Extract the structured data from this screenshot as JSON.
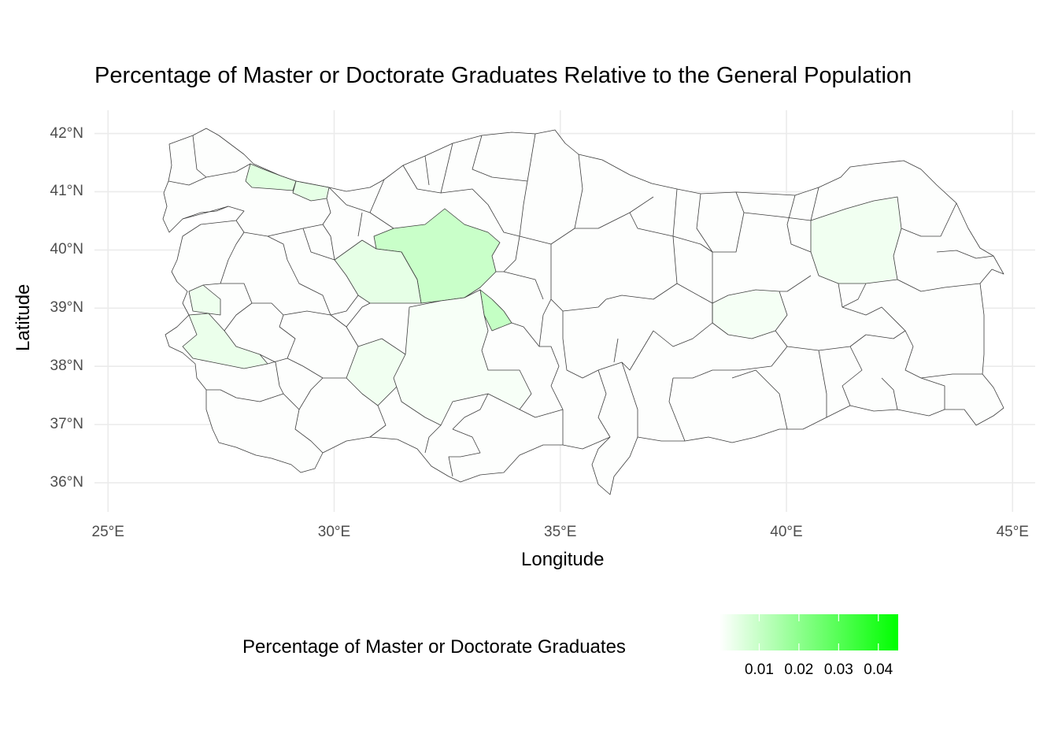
{
  "title": "Percentage of Master or Doctorate Graduates Relative to the General Population",
  "x_axis": {
    "label": "Longitude",
    "ticks": [
      {
        "value": 25,
        "label": "25°E"
      },
      {
        "value": 30,
        "label": "30°E"
      },
      {
        "value": 35,
        "label": "35°E"
      },
      {
        "value": 40,
        "label": "40°E"
      },
      {
        "value": 45,
        "label": "45°E"
      }
    ],
    "range": [
      24.7,
      45.5
    ]
  },
  "y_axis": {
    "label": "Latitude",
    "ticks": [
      {
        "value": 36,
        "label": "36°N"
      },
      {
        "value": 37,
        "label": "37°N"
      },
      {
        "value": 38,
        "label": "38°N"
      },
      {
        "value": 39,
        "label": "39°N"
      },
      {
        "value": 40,
        "label": "40°N"
      },
      {
        "value": 41,
        "label": "41°N"
      },
      {
        "value": 42,
        "label": "42°N"
      }
    ],
    "range": [
      35.5,
      42.4
    ]
  },
  "legend": {
    "title": "Percentage of Master or Doctorate Graduates",
    "position": "bottom",
    "low_color": "#ffffff",
    "high_color": "#00ff00",
    "range": [
      0.0,
      0.045
    ],
    "ticks": [
      {
        "value": 0.01,
        "label": "0.01"
      },
      {
        "value": 0.02,
        "label": "0.02"
      },
      {
        "value": 0.03,
        "label": "0.03"
      },
      {
        "value": 0.04,
        "label": "0.04"
      }
    ]
  },
  "chart_data": {
    "type": "choropleth",
    "grid": true,
    "regions": [
      {
        "lon": 32.8,
        "lat": 39.7,
        "value": 0.0095
      },
      {
        "lon": 33.5,
        "lat": 39.0,
        "value": 0.0105
      },
      {
        "lon": 31.3,
        "lat": 39.6,
        "value": 0.0045
      },
      {
        "lon": 28.8,
        "lat": 41.1,
        "value": 0.0055
      },
      {
        "lon": 29.6,
        "lat": 40.95,
        "value": 0.0045
      },
      {
        "lon": 27.4,
        "lat": 38.5,
        "value": 0.0035
      },
      {
        "lon": 27.3,
        "lat": 39.3,
        "value": 0.003
      },
      {
        "lon": 30.9,
        "lat": 38.0,
        "value": 0.0025
      },
      {
        "lon": 41.1,
        "lat": 39.9,
        "value": 0.0025
      },
      {
        "lon": 39.7,
        "lat": 38.7,
        "value": 0.0018
      },
      {
        "lon": 32.5,
        "lat": 38.0,
        "value": 0.0015
      }
    ]
  }
}
